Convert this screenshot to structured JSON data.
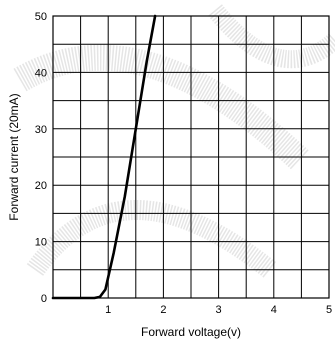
{
  "chart_data": {
    "type": "line",
    "xlabel": "Forward voltage(v)",
    "ylabel": "Forward current (20mA)",
    "xlim": [
      0,
      5
    ],
    "ylim": [
      0,
      50
    ],
    "x_ticks": [
      1,
      2,
      3,
      4,
      5
    ],
    "y_ticks": [
      0,
      10,
      20,
      30,
      40,
      50
    ],
    "x_grid_step": 0.5,
    "y_grid_step": 5,
    "grid": true,
    "series": [
      {
        "color": "#000000",
        "points": [
          [
            0,
            0
          ],
          [
            0.4,
            0
          ],
          [
            0.75,
            0
          ],
          [
            0.85,
            0.2
          ],
          [
            0.95,
            1.5
          ],
          [
            1.1,
            8
          ],
          [
            1.3,
            18
          ],
          [
            1.5,
            30
          ],
          [
            1.7,
            42
          ],
          [
            1.85,
            50
          ]
        ]
      }
    ]
  }
}
